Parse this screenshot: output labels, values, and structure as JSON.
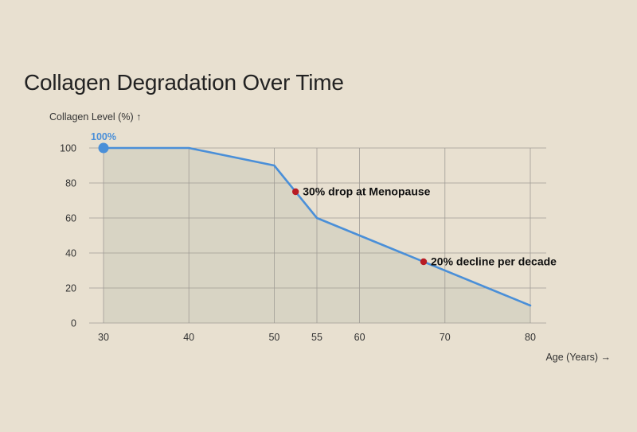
{
  "chart_data": {
    "type": "area",
    "title": "Collagen Degradation Over Time",
    "ylabel": "Collagen Level (%) ↑",
    "xlabel": "Age (Years) →",
    "xlim": [
      30,
      80
    ],
    "ylim": [
      0,
      100
    ],
    "x_ticks": [
      30,
      40,
      50,
      55,
      60,
      70,
      80
    ],
    "y_ticks": [
      0,
      20,
      40,
      60,
      80,
      100
    ],
    "grid": true,
    "series": [
      {
        "points": [
          {
            "x": 30,
            "y": 100
          },
          {
            "x": 40,
            "y": 100
          },
          {
            "x": 50,
            "y": 90
          },
          {
            "x": 55,
            "y": 60
          },
          {
            "x": 60,
            "y": 50
          },
          {
            "x": 80,
            "y": 10
          }
        ]
      }
    ],
    "annotations": [
      {
        "x": 30,
        "y": 100,
        "label": "100%",
        "kind": "start"
      },
      {
        "x": 52.5,
        "y": 75,
        "label": "30% drop at Menopause",
        "kind": "event"
      },
      {
        "x": 67.5,
        "y": 35,
        "label": "20% decline per decade",
        "kind": "event"
      }
    ],
    "colors": {
      "line": "#4a8fd8",
      "area": "#d8d4c4",
      "grid": "#a09c96",
      "marker": "#b81c25",
      "start_marker": "#4a8fd8",
      "background": "#e8e0d0"
    }
  }
}
